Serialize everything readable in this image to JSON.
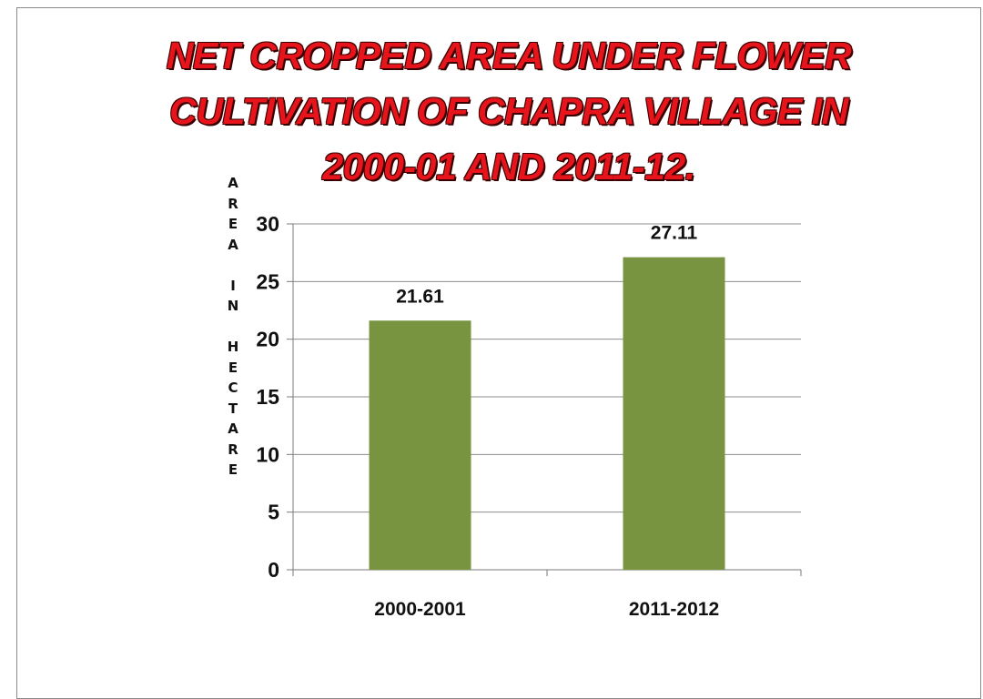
{
  "chart_data": {
    "type": "bar",
    "title_lines": [
      "NET CROPPED AREA UNDER FLOWER",
      "CULTIVATION OF CHAPRA VILLAGE IN",
      "2000-01 AND 2011-12."
    ],
    "ylabel": "AREA IN HECTARE",
    "xlabel": "",
    "categories": [
      "2000-2001",
      "2011-2012"
    ],
    "values": [
      21.61,
      27.11
    ],
    "data_labels": [
      "21.61",
      "27.11"
    ],
    "ylim": [
      0,
      30
    ],
    "yticks": [
      0,
      5,
      10,
      15,
      20,
      25,
      30
    ],
    "grid": true,
    "legend": "none",
    "bar_color": "#789440",
    "grid_color": "#8c8c8c",
    "title_color": "#e8141c"
  }
}
